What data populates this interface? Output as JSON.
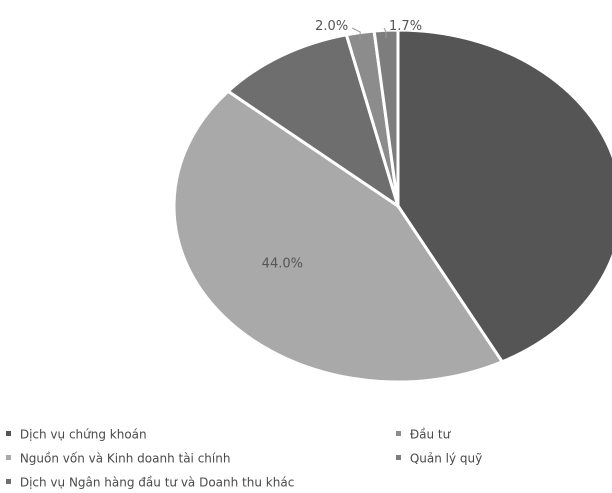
{
  "chart_data": {
    "type": "pie",
    "title": "",
    "slices": [
      {
        "name": "Dịch vụ chứng khoán",
        "value": 42.3,
        "label": "",
        "color": "#555555"
      },
      {
        "name": "Nguồn vốn và Kinh doanh tài chính",
        "value": 44.0,
        "label": "44.0%",
        "color": "#a9a9a9"
      },
      {
        "name": "Dịch vụ Ngân hàng đầu tư và Doanh thu khác",
        "value": 10.0,
        "label": "",
        "color": "#6e6e6e"
      },
      {
        "name": "Đầu tư",
        "value": 2.0,
        "label": "2.0%",
        "color": "#8c8c8c"
      },
      {
        "name": "Quản lý quỹ",
        "value": 1.7,
        "label": "1.7%",
        "color": "#7d7d7d"
      }
    ],
    "legend_position": "bottom"
  },
  "legend": {
    "items": [
      {
        "label": "Dịch vụ chứng khoán",
        "color": "#555555"
      },
      {
        "label": "Đầu tư",
        "color": "#8c8c8c"
      },
      {
        "label": "Nguồn vốn và Kinh doanh tài chính",
        "color": "#a9a9a9"
      },
      {
        "label": "Quản lý quỹ",
        "color": "#7d7d7d"
      },
      {
        "label": "Dịch vụ Ngân hàng đầu tư và Doanh thu khác",
        "color": "#6e6e6e"
      }
    ]
  }
}
